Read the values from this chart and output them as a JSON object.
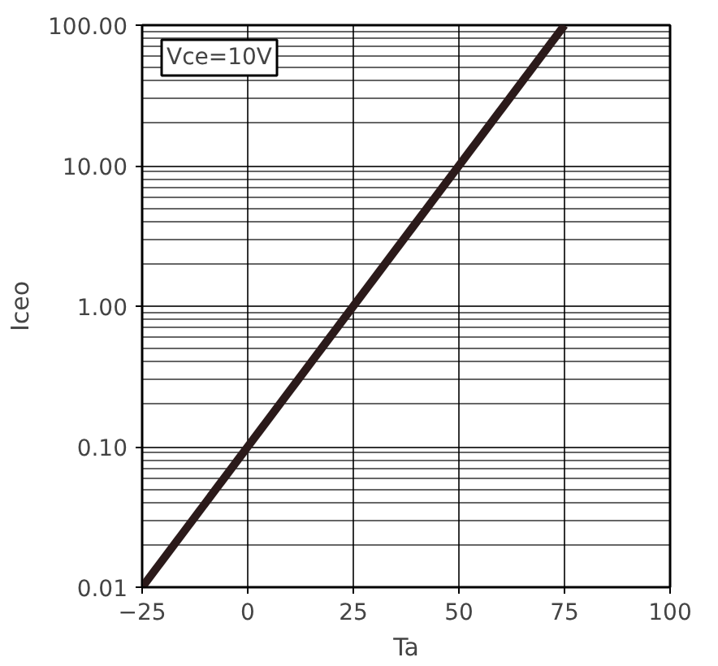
{
  "chart_data": {
    "type": "line",
    "xlabel": "Ta",
    "ylabel": "Iceo",
    "annotations": [
      "Vce=10V"
    ],
    "x": [
      -25,
      75
    ],
    "series": [
      {
        "color": "#2b1a1a",
        "values": [
          0.01,
          100
        ]
      }
    ],
    "xlim": [
      -25,
      100
    ],
    "xticks": [
      -25,
      0,
      25,
      50,
      75,
      100
    ],
    "ylim": [
      0.01,
      100
    ],
    "yticks": [
      {
        "value": 0.01,
        "label": "0.01"
      },
      {
        "value": 0.1,
        "label": "0.10"
      },
      {
        "value": 1,
        "label": "1.00"
      },
      {
        "value": 10,
        "label": "10.00"
      },
      {
        "value": 100,
        "label": "100.00"
      }
    ],
    "log": "y",
    "grid": true,
    "marker": "none",
    "line_style": "solid"
  }
}
